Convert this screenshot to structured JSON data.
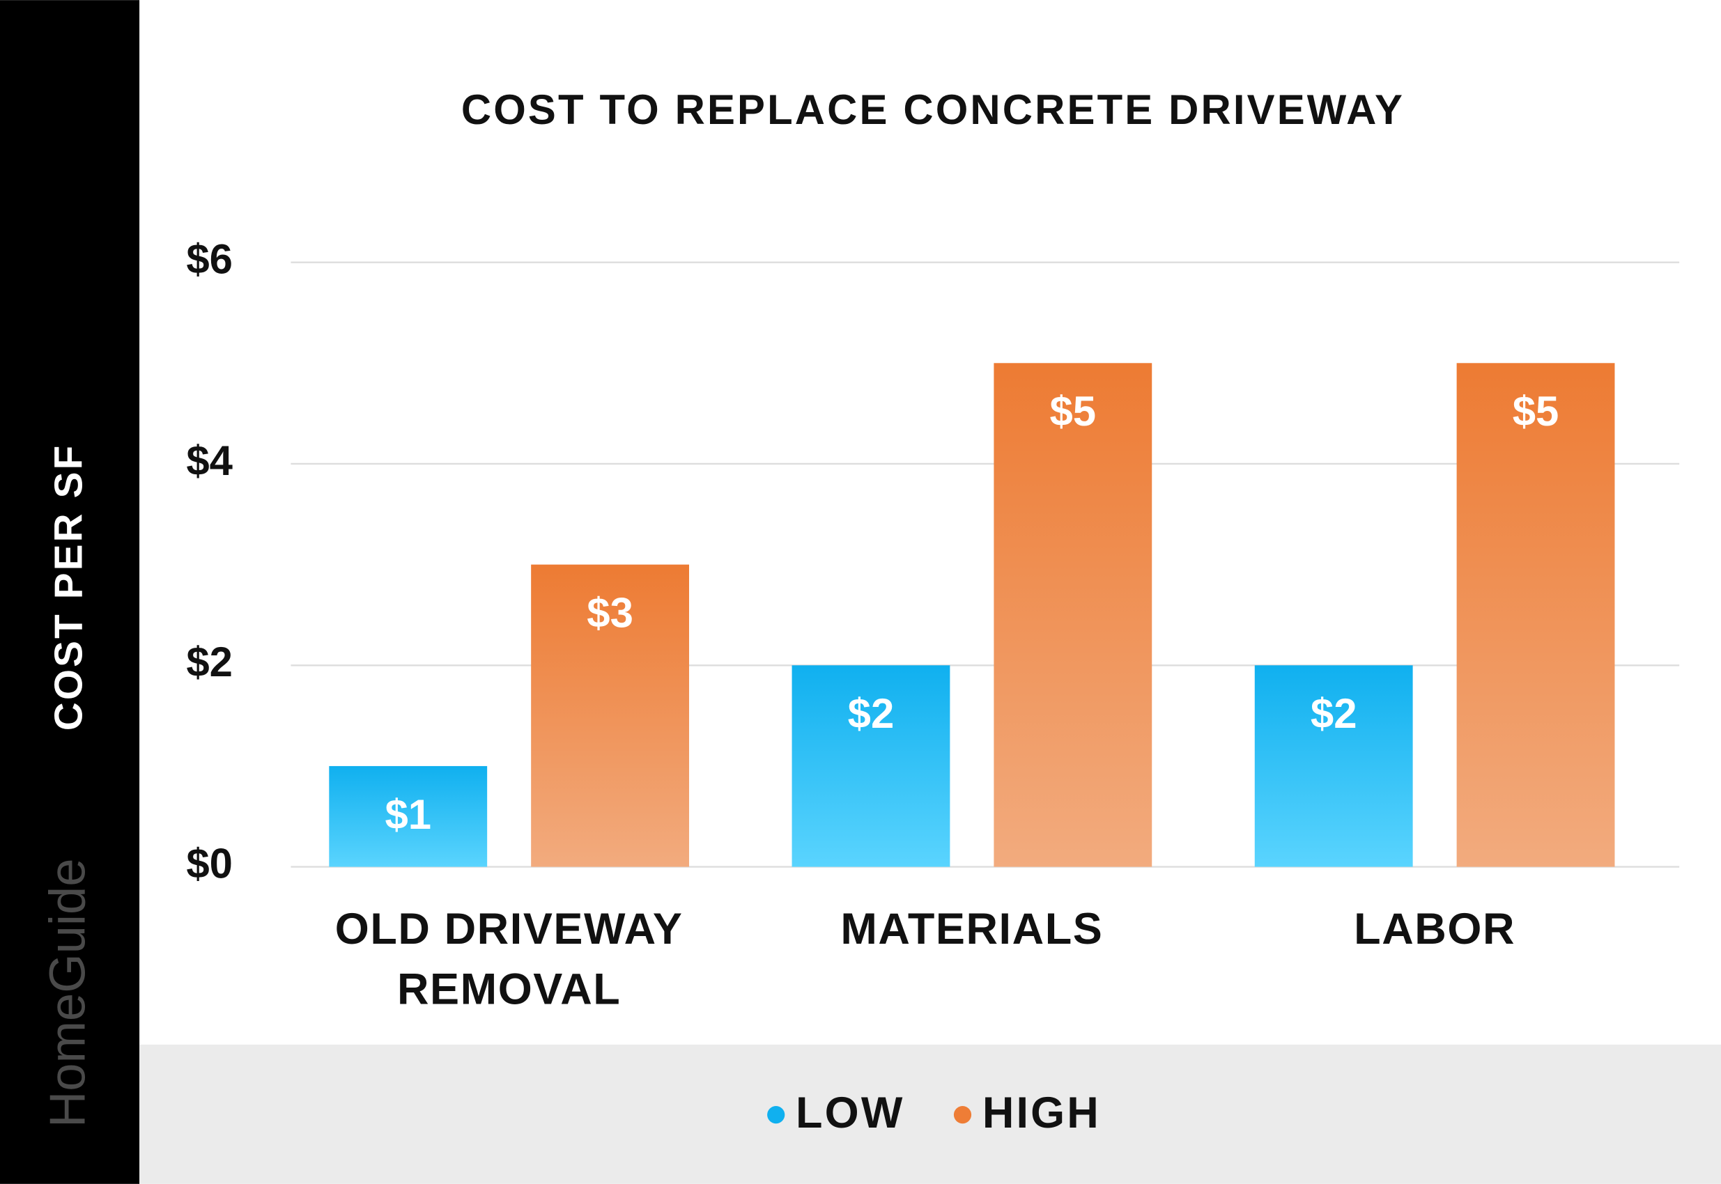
{
  "chart_data": {
    "type": "bar",
    "title": "COST TO REPLACE CONCRETE DRIVEWAY",
    "y_label": "COST PER SF",
    "watermark": "HomeGuide",
    "categories": [
      "OLD DRIVEWAY REMOVAL",
      "MATERIALS",
      "LABOR"
    ],
    "series": [
      {
        "name": "LOW",
        "color": "#10b0ef",
        "gradient": [
          "#10b0ef",
          "#5ad4fe"
        ],
        "values": [
          1,
          2,
          2
        ],
        "value_labels": [
          "$1",
          "$2",
          "$2"
        ]
      },
      {
        "name": "HIGH",
        "color": "#ee7d36",
        "gradient": [
          "#ed7b33",
          "#f2ab7e"
        ],
        "values": [
          3,
          5,
          5
        ],
        "value_labels": [
          "$3",
          "$5",
          "$5"
        ]
      }
    ],
    "ylim": [
      0,
      6
    ],
    "yticks": [
      {
        "value": 0,
        "label": "$0"
      },
      {
        "value": 2,
        "label": "$2"
      },
      {
        "value": 4,
        "label": "$4"
      },
      {
        "value": 6,
        "label": "$6"
      }
    ],
    "grid": true,
    "legend": "bottom"
  }
}
